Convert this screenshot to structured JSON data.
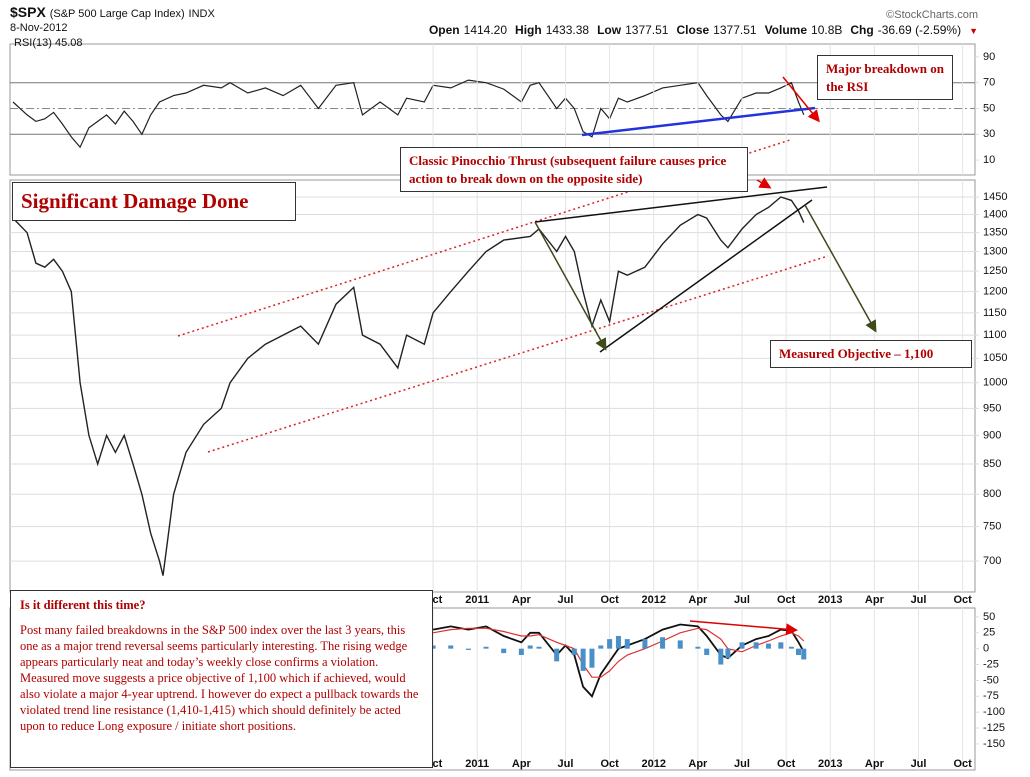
{
  "header": {
    "symbol": "$SPX",
    "name": "(S&P 500 Large Cap Index)",
    "exchange": "INDX",
    "date": "8-Nov-2012",
    "source": "©StockCharts.com",
    "quote": [
      {
        "label": "Open",
        "value": "1414.20"
      },
      {
        "label": "High",
        "value": "1433.38"
      },
      {
        "label": "Low",
        "value": "1377.51"
      },
      {
        "label": "Close",
        "value": "1377.51"
      },
      {
        "label": "Volume",
        "value": "10.8B"
      },
      {
        "label": "Chg",
        "value": "-36.69 (-2.59%)"
      }
    ]
  },
  "annotations": {
    "headline": "Significant  Damage Done",
    "pinocchio": "Classic Pinocchio Thrust (subsequent failure causes price action to break down on the opposite side)",
    "rsi_breakdown": "Major breakdown on the RSI",
    "objective": "Measured Objective – 1,100",
    "commentary_title": "Is it different this time?",
    "commentary": "Post many failed breakdowns in the S&P 500 index over the last 3 years, this one as a major trend reversal seems particularly interesting. The rising wedge appears particularly neat and today’s weekly close confirms a violation. Measured move suggests a price objective of 1,100 which if achieved, would also violate a major 4-year uptrend. I however do expect a pullback towards the violated trend line resistance (1,410-1,415) which should definitely be acted upon to reduce Long exposure / initiate short positions."
  },
  "chart_data": [
    {
      "type": "line",
      "title": "RSI(13) 45.08",
      "color": "#222222",
      "xlim": [
        2008.353,
        2013.82
      ],
      "ylim": [
        0,
        100
      ],
      "yticks": [
        10,
        30,
        50,
        70,
        90
      ],
      "levels": [
        30,
        50,
        70
      ],
      "x": [
        2008.37,
        2008.45,
        2008.5,
        2008.55,
        2008.6,
        2008.65,
        2008.7,
        2008.75,
        2008.8,
        2008.85,
        2008.9,
        2008.95,
        2009.0,
        2009.05,
        2009.1,
        2009.15,
        2009.2,
        2009.28,
        2009.35,
        2009.45,
        2009.55,
        2009.6,
        2009.7,
        2009.8,
        2009.9,
        2010.0,
        2010.1,
        2010.2,
        2010.3,
        2010.35,
        2010.45,
        2010.55,
        2010.6,
        2010.7,
        2010.75,
        2010.85,
        2010.95,
        2011.05,
        2011.15,
        2011.25,
        2011.3,
        2011.35,
        2011.45,
        2011.5,
        2011.55,
        2011.6,
        2011.65,
        2011.7,
        2011.75,
        2011.8,
        2011.85,
        2011.95,
        2012.05,
        2012.15,
        2012.25,
        2012.3,
        2012.38,
        2012.42,
        2012.5,
        2012.58,
        2012.65,
        2012.72,
        2012.78,
        2012.82,
        2012.85
      ],
      "values": [
        55,
        45,
        40,
        42,
        47,
        38,
        28,
        20,
        35,
        40,
        45,
        38,
        48,
        40,
        30,
        45,
        55,
        60,
        62,
        68,
        66,
        70,
        62,
        66,
        60,
        68,
        50,
        68,
        70,
        45,
        55,
        45,
        58,
        55,
        68,
        66,
        72,
        70,
        65,
        55,
        68,
        70,
        50,
        58,
        50,
        32,
        28,
        50,
        42,
        58,
        55,
        60,
        66,
        68,
        70,
        60,
        45,
        40,
        58,
        62,
        62,
        66,
        70,
        55,
        45.08
      ]
    },
    {
      "type": "line",
      "color": "#222222",
      "log": true,
      "grid": true,
      "xlim": [
        2008.353,
        2013.82
      ],
      "xticks": [
        {
          "value": 2010.75,
          "label": "Oct"
        },
        2011,
        {
          "value": 2011.25,
          "label": "Apr"
        },
        {
          "value": 2011.5,
          "label": "Jul"
        },
        {
          "value": 2011.75,
          "label": "Oct"
        },
        2012,
        {
          "value": 2012.25,
          "label": "Apr"
        },
        {
          "value": 2012.5,
          "label": "Jul"
        },
        {
          "value": 2012.75,
          "label": "Oct"
        },
        2013,
        {
          "value": 2013.25,
          "label": "Apr"
        },
        {
          "value": 2013.5,
          "label": "Jul"
        },
        {
          "value": 2013.75,
          "label": "Oct"
        }
      ],
      "ylim": [
        658,
        1500
      ],
      "yticks": [
        700,
        750,
        800,
        850,
        900,
        950,
        1000,
        1050,
        1100,
        1150,
        1200,
        1250,
        1300,
        1350,
        1400,
        1450
      ],
      "x": [
        2008.37,
        2008.45,
        2008.5,
        2008.55,
        2008.6,
        2008.65,
        2008.7,
        2008.75,
        2008.8,
        2008.85,
        2008.9,
        2008.95,
        2009.0,
        2009.05,
        2009.1,
        2009.15,
        2009.2,
        2009.22,
        2009.28,
        2009.35,
        2009.45,
        2009.55,
        2009.6,
        2009.7,
        2009.8,
        2009.9,
        2010.0,
        2010.1,
        2010.2,
        2010.3,
        2010.35,
        2010.45,
        2010.55,
        2010.6,
        2010.7,
        2010.75,
        2010.85,
        2010.95,
        2011.05,
        2011.15,
        2011.3,
        2011.35,
        2011.45,
        2011.5,
        2011.55,
        2011.6,
        2011.65,
        2011.7,
        2011.75,
        2011.8,
        2011.85,
        2011.95,
        2012.05,
        2012.15,
        2012.25,
        2012.3,
        2012.38,
        2012.42,
        2012.5,
        2012.58,
        2012.65,
        2012.72,
        2012.78,
        2012.82,
        2012.85
      ],
      "values": [
        1390,
        1350,
        1270,
        1260,
        1280,
        1250,
        1200,
        1000,
        900,
        850,
        900,
        870,
        900,
        850,
        800,
        740,
        700,
        680,
        800,
        870,
        920,
        950,
        1000,
        1050,
        1080,
        1100,
        1120,
        1080,
        1170,
        1210,
        1100,
        1080,
        1030,
        1100,
        1080,
        1150,
        1200,
        1250,
        1300,
        1330,
        1340,
        1360,
        1300,
        1340,
        1300,
        1200,
        1120,
        1180,
        1130,
        1250,
        1240,
        1260,
        1320,
        1370,
        1400,
        1390,
        1330,
        1310,
        1360,
        1400,
        1420,
        1450,
        1440,
        1410,
        1377.51
      ]
    },
    {
      "type": "line",
      "xlim": [
        2008.353,
        2013.82
      ],
      "ylim": [
        -191,
        64
      ],
      "yticks": [
        50,
        25,
        0,
        -25,
        -50,
        -75,
        -100,
        -125,
        -150
      ],
      "x": [
        2010.75,
        2010.85,
        2010.95,
        2011.05,
        2011.15,
        2011.25,
        2011.3,
        2011.35,
        2011.45,
        2011.5,
        2011.55,
        2011.6,
        2011.65,
        2011.7,
        2011.75,
        2011.8,
        2011.85,
        2011.95,
        2012.05,
        2012.15,
        2012.25,
        2012.3,
        2012.38,
        2012.42,
        2012.5,
        2012.58,
        2012.65,
        2012.72,
        2012.78,
        2012.82,
        2012.85
      ],
      "series": [
        {
          "color": "#111111",
          "values": [
            30,
            35,
            30,
            35,
            20,
            10,
            25,
            25,
            -10,
            5,
            -10,
            -60,
            -75,
            -40,
            -20,
            0,
            5,
            15,
            30,
            38,
            35,
            20,
            -10,
            -15,
            5,
            15,
            20,
            30,
            28,
            10,
            -5
          ]
        },
        {
          "color": "#e03030",
          "values": [
            25,
            30,
            32,
            32,
            27,
            20,
            20,
            22,
            10,
            5,
            0,
            -25,
            -45,
            -45,
            -35,
            -20,
            -10,
            0,
            12,
            25,
            32,
            30,
            15,
            0,
            -5,
            5,
            12,
            20,
            25,
            20,
            12
          ]
        },
        {
          "type": "bar",
          "color": "#4a90c8",
          "values": [
            5,
            5,
            -2,
            3,
            -7,
            -10,
            5,
            3,
            -20,
            0,
            -10,
            -35,
            -30,
            5,
            15,
            20,
            15,
            15,
            18,
            13,
            3,
            -10,
            -25,
            -15,
            10,
            10,
            8,
            10,
            3,
            -10,
            -17
          ]
        }
      ]
    }
  ]
}
